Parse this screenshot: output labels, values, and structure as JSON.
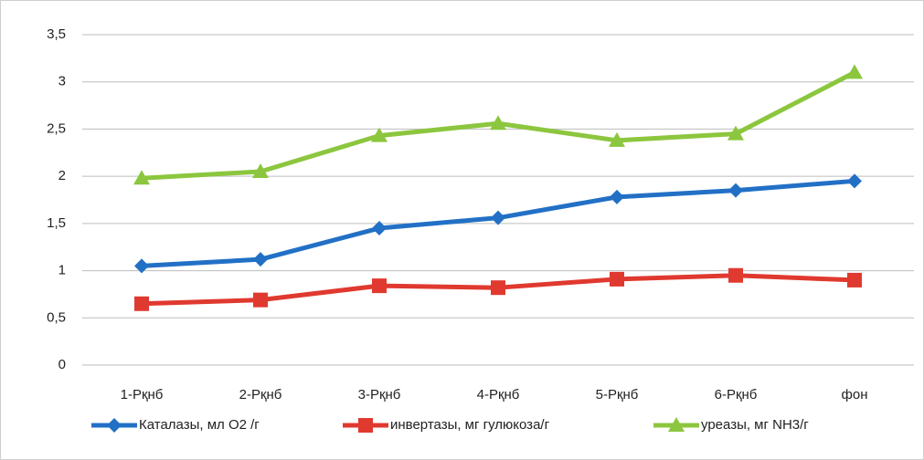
{
  "chart_data": {
    "type": "line",
    "categories": [
      "1-Рқнб",
      "2-Рқнб",
      "3-Рқнб",
      "4-Рқнб",
      "5-Рқнб",
      "6-Рқнб",
      "фон"
    ],
    "series": [
      {
        "name": "Каталазы, мл О2 /г",
        "color": "#2270c6",
        "marker": "diamond",
        "values": [
          1.05,
          1.12,
          1.45,
          1.56,
          1.78,
          1.85,
          1.95
        ]
      },
      {
        "name": "инвертазы, мг гулюкоза/г",
        "color": "#e0392f",
        "marker": "square",
        "values": [
          0.65,
          0.69,
          0.84,
          0.82,
          0.91,
          0.95,
          0.9
        ]
      },
      {
        "name": "уреазы, мг NH3/г",
        "color": "#8cc63e",
        "marker": "triangle",
        "values": [
          1.98,
          2.05,
          2.43,
          2.56,
          2.38,
          2.45,
          3.1
        ]
      }
    ],
    "ylim": [
      0,
      3.5
    ],
    "yticks": [
      0,
      {
        "value": 0.5,
        "label": "0,5"
      },
      1,
      {
        "value": 1.5,
        "label": "1,5"
      },
      2,
      {
        "value": 2.5,
        "label": "2,5"
      },
      3,
      {
        "value": 3.5,
        "label": "3,5"
      }
    ],
    "grid": true,
    "legend": "bottom"
  }
}
